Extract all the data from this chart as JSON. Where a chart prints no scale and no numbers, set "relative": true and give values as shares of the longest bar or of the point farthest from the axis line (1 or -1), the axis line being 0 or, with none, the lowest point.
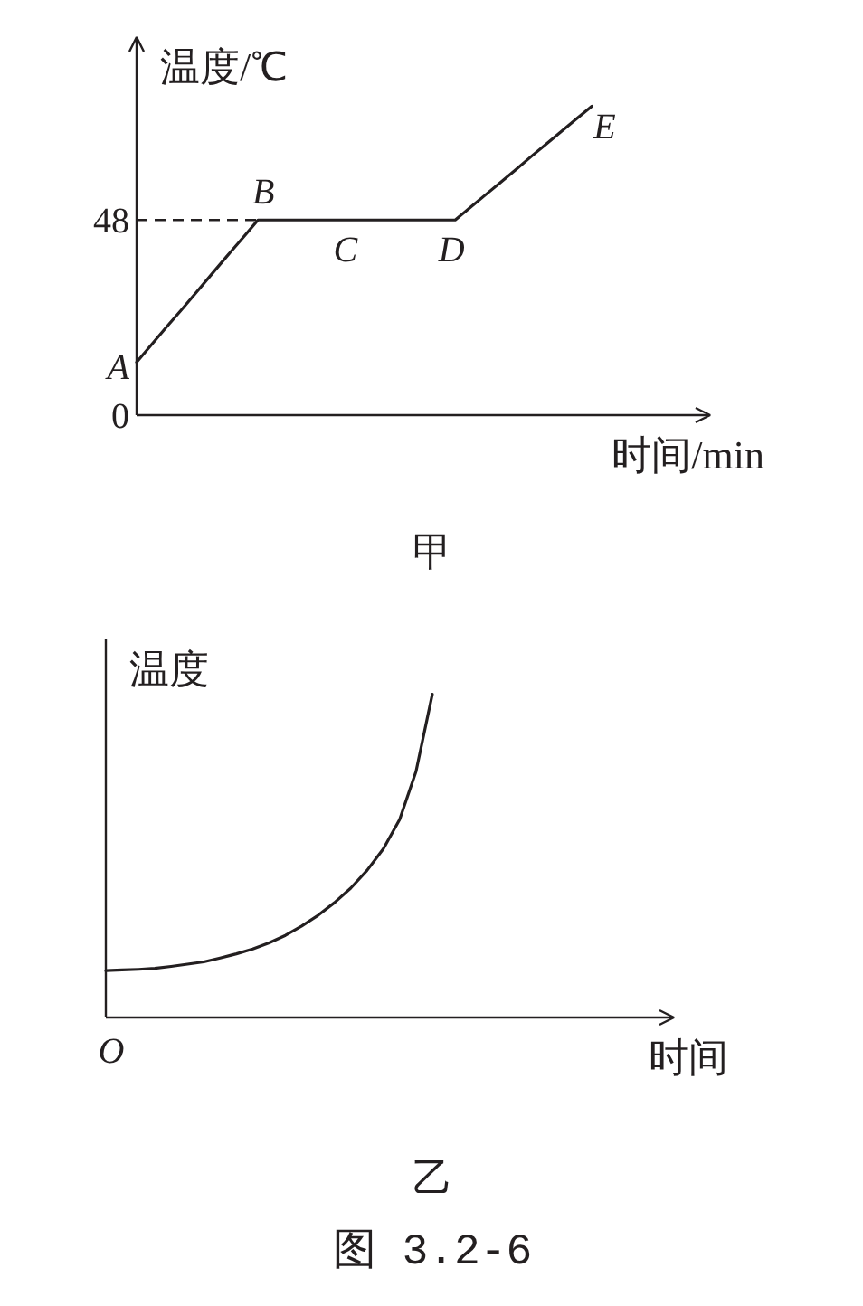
{
  "chart_data": [
    {
      "type": "line",
      "title": "甲",
      "xlabel": "时间/min",
      "ylabel": "温度/℃",
      "categories": [
        null,
        null,
        null,
        null,
        null,
        null,
        null,
        null,
        null,
        null,
        null,
        null,
        null,
        null,
        null,
        null,
        null,
        null,
        null,
        null,
        null,
        null,
        null,
        null,
        null,
        null,
        null,
        null,
        null,
        null,
        null,
        null,
        null,
        null,
        null,
        null,
        null,
        null
      ],
      "series": [
        {
          "color": "#231f20",
          "values": [
            13,
            17.4,
            21.8,
            26.1,
            30.5,
            34.9,
            39.3,
            43.6,
            48,
            48,
            48,
            48,
            48,
            48,
            48,
            48,
            48,
            48,
            48,
            48,
            48,
            48,
            51.1,
            54.2,
            57.3,
            60.4,
            63.6,
            66.7,
            69.8,
            72.9,
            76,
            null,
            null,
            null,
            null,
            null,
            null,
            null
          ],
          "value_labels": [
            "A",
            null,
            null,
            null,
            null,
            null,
            null,
            null,
            "B",
            null,
            null,
            null,
            null,
            null,
            "C",
            null,
            null,
            null,
            null,
            null,
            null,
            "D",
            null,
            null,
            null,
            null,
            null,
            null,
            null,
            null,
            "E",
            null,
            null,
            null,
            null,
            null,
            null,
            null
          ]
        }
      ],
      "ylim": [
        0,
        93
      ],
      "yticks": [
        0,
        48
      ],
      "tick_labels": "y",
      "ref_lines": [
        {
          "axis": "y",
          "value": 48,
          "line_style": "dashed"
        }
      ]
    },
    {
      "type": "line",
      "relative": true,
      "title": "乙",
      "xlabel": "时间",
      "ylabel": "温度",
      "categories": [
        null,
        null,
        null,
        null,
        null,
        null,
        null,
        null,
        null,
        null,
        null,
        null,
        null,
        null,
        null,
        null,
        null,
        null,
        null,
        null,
        null,
        null,
        null,
        null,
        null,
        null,
        null,
        null,
        null,
        null,
        null,
        null,
        null,
        null,
        null
      ],
      "series": [
        {
          "color": "#231f20",
          "values": [
            0.145,
            0.147,
            0.149,
            0.152,
            0.158,
            0.165,
            0.172,
            0.184,
            0.197,
            0.212,
            0.231,
            0.254,
            0.283,
            0.316,
            0.355,
            0.4,
            0.455,
            0.522,
            0.613,
            0.761,
            1,
            null,
            null,
            null,
            null,
            null,
            null,
            null,
            null,
            null,
            null,
            null,
            null,
            null,
            null
          ]
        }
      ],
      "annotations": [
        "O",
        "图 3.2-6"
      ]
    }
  ]
}
